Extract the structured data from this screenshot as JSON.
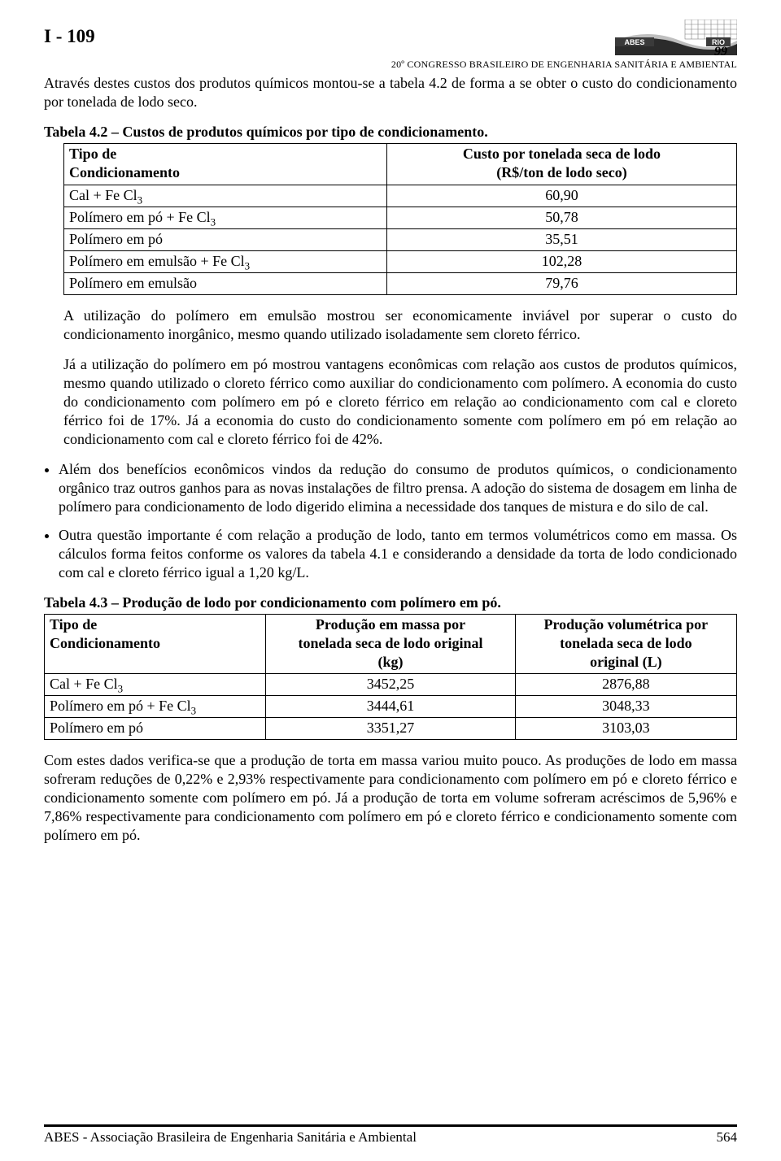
{
  "header": {
    "doc_id": "I - 109",
    "conference": "20º CONGRESSO BRASILEIRO DE ENGENHARIA SANITÁRIA E AMBIENTAL",
    "logo": {
      "abes": "ABES",
      "rio": "RIO",
      "year": "99",
      "grid_color": "#808080",
      "wave_dark": "#2b2b2b",
      "wave_light": "#bfbfbf"
    }
  },
  "intro_para": "Através destes custos dos produtos químicos montou-se a tabela 4.2 de forma a se obter o custo do condicionamento por tonelada de lodo seco.",
  "table1": {
    "caption": "Tabela 4.2 – Custos de produtos químicos por tipo de condicionamento.",
    "columns": [
      "Tipo de Condicionamento",
      "Custo por tonelada seca de lodo (R$/ton de lodo seco)"
    ],
    "col0_line1": "Tipo de",
    "col0_line2": "Condicionamento",
    "col1_line1": "Custo por tonelada seca de lodo",
    "col1_line2": "(R$/ton de lodo seco)",
    "rows": [
      {
        "label_html": "Cal + Fe Cl<span class='sub3'>3</span>",
        "value": "60,90"
      },
      {
        "label_html": "Polímero em pó + Fe Cl<span class='sub3'>3</span>",
        "value": "50,78"
      },
      {
        "label_html": "Polímero em pó",
        "value": "35,51"
      },
      {
        "label_html": "Polímero em emulsão + Fe Cl<span class='sub3'>3</span>",
        "value": "102,28"
      },
      {
        "label_html": "Polímero em emulsão",
        "value": "79,76"
      }
    ]
  },
  "para_after_t1_a": "A utilização do polímero em emulsão mostrou ser economicamente inviável por superar o custo do condicionamento inorgânico, mesmo quando utilizado isoladamente sem cloreto férrico.",
  "para_after_t1_b": "Já a utilização do polímero em pó mostrou vantagens econômicas com relação aos custos de produtos químicos, mesmo quando utilizado o cloreto férrico como auxiliar do condicionamento com polímero. A economia do custo do condicionamento com polímero em pó e cloreto férrico em relação ao condicionamento com cal e cloreto férrico foi de 17%. Já a economia do custo do condicionamento somente com polímero em pó em relação ao condicionamento com cal e cloreto férrico foi de 42%.",
  "bullets": [
    "Além dos benefícios econômicos vindos da redução do consumo de produtos químicos, o condicionamento orgânico traz outros ganhos para as novas instalações de filtro prensa. A adoção do sistema de dosagem em linha de polímero para condicionamento de lodo digerido elimina a necessidade dos tanques de mistura e do silo de cal.",
    "Outra questão importante é com relação a produção de lodo, tanto em termos volumétricos como em massa. Os cálculos forma feitos conforme os valores da tabela 4.1 e considerando a densidade da torta de lodo condicionado com cal e cloreto férrico igual a 1,20 kg/L."
  ],
  "table2": {
    "caption": "Tabela 4.3 – Produção de lodo por condicionamento com polímero em pó.",
    "col0_line1": "Tipo de",
    "col0_line2": "Condicionamento",
    "col1_line1": "Produção em massa por",
    "col1_line2": "tonelada seca de lodo original",
    "col1_line3": "(kg)",
    "col2_line1": "Produção volumétrica por",
    "col2_line2": "tonelada seca de lodo",
    "col2_line3": "original (L)",
    "rows": [
      {
        "label_html": "Cal + Fe Cl<span class='sub3'>3</span>",
        "v1": "3452,25",
        "v2": "2876,88"
      },
      {
        "label_html": "Polímero em pó + Fe Cl<span class='sub3'>3</span>",
        "v1": "3444,61",
        "v2": "3048,33"
      },
      {
        "label_html": "Polímero em pó",
        "v1": "3351,27",
        "v2": "3103,03"
      }
    ],
    "col_widths_pct": [
      32,
      36,
      32
    ]
  },
  "para_after_t2": "Com estes dados verifica-se que a produção de torta em massa variou muito pouco. As produções de lodo em massa sofreram reduções de 0,22% e 2,93% respectivamente para condicionamento com polímero em pó e cloreto férrico e condicionamento somente com polímero em pó. Já a produção de torta em volume sofreram acréscimos de 5,96% e 7,86% respectivamente para condicionamento com polímero em pó e cloreto férrico e condicionamento somente com polímero em pó.",
  "footer": {
    "org": "ABES - Associação Brasileira de Engenharia Sanitária e Ambiental",
    "page": "564"
  }
}
